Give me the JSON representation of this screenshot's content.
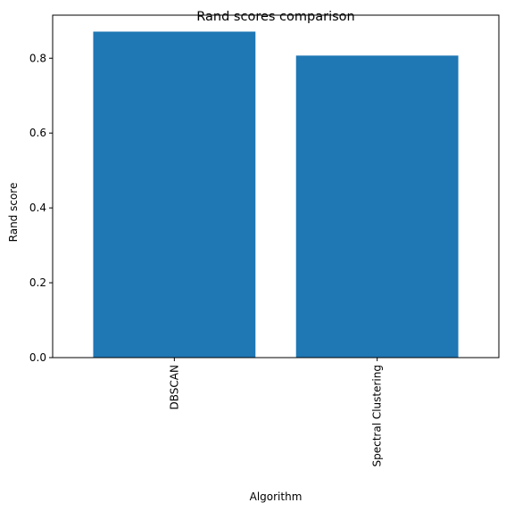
{
  "chart_data": {
    "type": "bar",
    "title": "Rand scores comparison",
    "xlabel": "Algorithm",
    "ylabel": "Rand score",
    "categories": [
      "DBSCAN",
      "Spectral Clustering"
    ],
    "values": [
      0.871,
      0.807
    ],
    "ylim": [
      0,
      0.915
    ],
    "yticks": [
      0.0,
      0.2,
      0.4,
      0.6,
      0.8
    ],
    "ytick_labels": [
      "0.0",
      "0.2",
      "0.4",
      "0.6",
      "0.8"
    ],
    "bar_color": "#1f77b4",
    "grid": false,
    "xtick_rotation": "vertical"
  }
}
